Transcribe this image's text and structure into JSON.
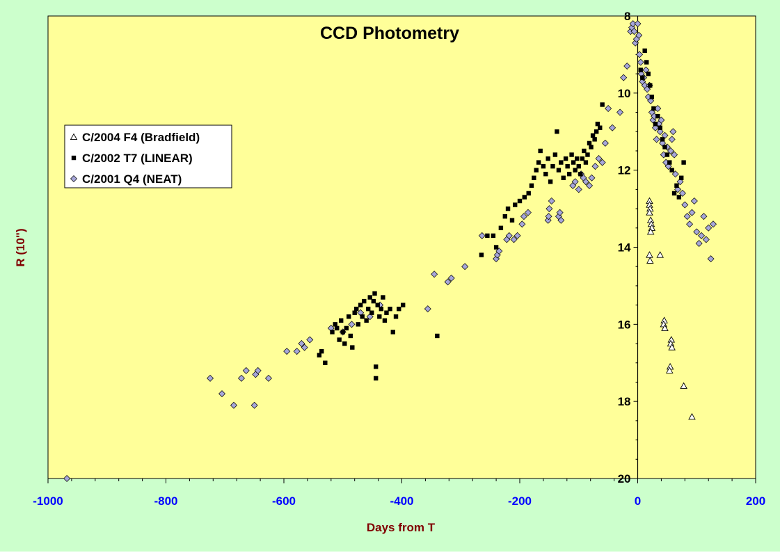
{
  "colors": {
    "background": "#ccffcc",
    "plot_area": "#ffff99",
    "tick_label_x": "#0000ff",
    "axis_title": "#800000",
    "diamond_fill": "#a6a6d9",
    "square_fill": "#000000",
    "triangle_fill": "#ffffff"
  },
  "chart_data": {
    "type": "scatter",
    "title": "CCD Photometry",
    "xlabel": "Days from T",
    "ylabel": "R (10\")",
    "xlim": [
      -1000,
      200
    ],
    "ylim": [
      8,
      20
    ],
    "y_inverted": true,
    "x_ticks": [
      "-1000",
      "-800",
      "-600",
      "-400",
      "-200",
      "0",
      "200"
    ],
    "y_ticks": [
      "8",
      "10",
      "12",
      "14",
      "16",
      "18",
      "20"
    ],
    "grid": false,
    "legend_position": "left",
    "series": [
      {
        "name": "C/2004 F4 (Bradfield)",
        "marker": "triangle",
        "points": [
          [
            20,
            12.8
          ],
          [
            20,
            12.9
          ],
          [
            21,
            13.0
          ],
          [
            20,
            13.1
          ],
          [
            22,
            13.3
          ],
          [
            23,
            13.4
          ],
          [
            24,
            13.5
          ],
          [
            22,
            13.6
          ],
          [
            20,
            14.2
          ],
          [
            21,
            14.35
          ],
          [
            38,
            14.2
          ],
          [
            45,
            15.9
          ],
          [
            44,
            16.0
          ],
          [
            46,
            16.1
          ],
          [
            57,
            16.4
          ],
          [
            56,
            16.5
          ],
          [
            58,
            16.6
          ],
          [
            55,
            17.1
          ],
          [
            54,
            17.2
          ],
          [
            78,
            17.6
          ],
          [
            92,
            18.4
          ]
        ]
      },
      {
        "name": "C/2002 T7 (LINEAR)",
        "marker": "square",
        "points": [
          [
            -540,
            16.8
          ],
          [
            -536,
            16.7
          ],
          [
            -530,
            17.0
          ],
          [
            -518,
            16.2
          ],
          [
            -513,
            16.0
          ],
          [
            -510,
            16.1
          ],
          [
            -506,
            16.4
          ],
          [
            -503,
            15.9
          ],
          [
            -500,
            16.2
          ],
          [
            -497,
            16.5
          ],
          [
            -494,
            16.1
          ],
          [
            -490,
            15.8
          ],
          [
            -487,
            16.3
          ],
          [
            -484,
            16.6
          ],
          [
            -480,
            15.7
          ],
          [
            -477,
            15.6
          ],
          [
            -474,
            16.0
          ],
          [
            -470,
            15.5
          ],
          [
            -467,
            15.8
          ],
          [
            -464,
            15.4
          ],
          [
            -460,
            15.9
          ],
          [
            -457,
            15.6
          ],
          [
            -454,
            15.3
          ],
          [
            -451,
            15.7
          ],
          [
            -448,
            15.4
          ],
          [
            -446,
            15.2
          ],
          [
            -444,
            17.1
          ],
          [
            -444,
            17.4
          ],
          [
            -441,
            15.5
          ],
          [
            -438,
            15.8
          ],
          [
            -435,
            15.6
          ],
          [
            -432,
            15.3
          ],
          [
            -429,
            15.9
          ],
          [
            -426,
            15.7
          ],
          [
            -420,
            15.6
          ],
          [
            -415,
            16.2
          ],
          [
            -410,
            15.8
          ],
          [
            -405,
            15.6
          ],
          [
            -398,
            15.5
          ],
          [
            -340,
            16.3
          ],
          [
            -265,
            14.2
          ],
          [
            -255,
            13.7
          ],
          [
            -245,
            13.7
          ],
          [
            -240,
            14.0
          ],
          [
            -232,
            13.5
          ],
          [
            -225,
            13.2
          ],
          [
            -220,
            13.0
          ],
          [
            -213,
            13.3
          ],
          [
            -208,
            12.9
          ],
          [
            -200,
            12.8
          ],
          [
            -192,
            12.7
          ],
          [
            -185,
            12.6
          ],
          [
            -180,
            12.4
          ],
          [
            -176,
            12.2
          ],
          [
            -172,
            12.0
          ],
          [
            -168,
            11.8
          ],
          [
            -165,
            11.5
          ],
          [
            -160,
            11.9
          ],
          [
            -156,
            12.1
          ],
          [
            -152,
            11.7
          ],
          [
            -148,
            12.3
          ],
          [
            -144,
            11.9
          ],
          [
            -140,
            11.6
          ],
          [
            -137,
            11.0
          ],
          [
            -134,
            12.0
          ],
          [
            -130,
            11.8
          ],
          [
            -126,
            12.2
          ],
          [
            -122,
            11.7
          ],
          [
            -119,
            11.9
          ],
          [
            -116,
            12.1
          ],
          [
            -112,
            11.6
          ],
          [
            -109,
            11.8
          ],
          [
            -106,
            12.0
          ],
          [
            -103,
            11.7
          ],
          [
            -100,
            11.9
          ],
          [
            -97,
            12.1
          ],
          [
            -94,
            11.7
          ],
          [
            -91,
            11.5
          ],
          [
            -88,
            11.8
          ],
          [
            -85,
            11.6
          ],
          [
            -82,
            11.3
          ],
          [
            -79,
            11.4
          ],
          [
            -76,
            11.1
          ],
          [
            -73,
            11.2
          ],
          [
            -70,
            11.0
          ],
          [
            -68,
            10.8
          ],
          [
            -64,
            10.9
          ],
          [
            -60,
            10.3
          ],
          [
            5,
            9.4
          ],
          [
            8,
            9.6
          ],
          [
            12,
            8.9
          ],
          [
            15,
            9.2
          ],
          [
            18,
            9.5
          ],
          [
            21,
            9.8
          ],
          [
            24,
            10.1
          ],
          [
            27,
            10.4
          ],
          [
            30,
            10.8
          ],
          [
            34,
            10.6
          ],
          [
            38,
            10.9
          ],
          [
            42,
            11.2
          ],
          [
            46,
            11.4
          ],
          [
            50,
            11.6
          ],
          [
            54,
            11.8
          ],
          [
            58,
            12.0
          ],
          [
            62,
            12.6
          ],
          [
            66,
            12.4
          ],
          [
            70,
            12.7
          ],
          [
            74,
            12.2
          ],
          [
            78,
            11.8
          ]
        ]
      },
      {
        "name": "C/2001 Q4 (NEAT)",
        "marker": "diamond",
        "points": [
          [
            -968,
            20.0
          ],
          [
            -725,
            17.4
          ],
          [
            -705,
            17.8
          ],
          [
            -685,
            18.1
          ],
          [
            -672,
            17.4
          ],
          [
            -664,
            17.2
          ],
          [
            -650,
            18.1
          ],
          [
            -648,
            17.3
          ],
          [
            -644,
            17.2
          ],
          [
            -626,
            17.4
          ],
          [
            -595,
            16.7
          ],
          [
            -578,
            16.7
          ],
          [
            -570,
            16.5
          ],
          [
            -565,
            16.6
          ],
          [
            -556,
            16.4
          ],
          [
            -520,
            16.1
          ],
          [
            -500,
            16.2
          ],
          [
            -485,
            16.0
          ],
          [
            -470,
            15.7
          ],
          [
            -454,
            15.8
          ],
          [
            -437,
            15.5
          ],
          [
            -356,
            15.6
          ],
          [
            -345,
            14.7
          ],
          [
            -322,
            14.9
          ],
          [
            -316,
            14.8
          ],
          [
            -293,
            14.5
          ],
          [
            -264,
            13.7
          ],
          [
            -240,
            14.3
          ],
          [
            -238,
            14.2
          ],
          [
            -235,
            14.1
          ],
          [
            -222,
            13.8
          ],
          [
            -218,
            13.7
          ],
          [
            -210,
            13.8
          ],
          [
            -204,
            13.7
          ],
          [
            -196,
            13.4
          ],
          [
            -193,
            13.2
          ],
          [
            -186,
            13.1
          ],
          [
            -152,
            13.3
          ],
          [
            -151,
            13.2
          ],
          [
            -150,
            13.0
          ],
          [
            -146,
            12.8
          ],
          [
            -134,
            13.2
          ],
          [
            -132,
            13.1
          ],
          [
            -130,
            13.3
          ],
          [
            -110,
            12.4
          ],
          [
            -106,
            12.3
          ],
          [
            -100,
            12.5
          ],
          [
            -96,
            12.1
          ],
          [
            -92,
            12.2
          ],
          [
            -88,
            12.3
          ],
          [
            -82,
            12.4
          ],
          [
            -78,
            12.2
          ],
          [
            -72,
            11.9
          ],
          [
            -66,
            11.7
          ],
          [
            -60,
            11.8
          ],
          [
            -55,
            11.3
          ],
          [
            -50,
            10.4
          ],
          [
            -43,
            10.9
          ],
          [
            -30,
            10.5
          ],
          [
            -24,
            9.6
          ],
          [
            -18,
            9.3
          ],
          [
            -12,
            8.4
          ],
          [
            -10,
            8.3
          ],
          [
            -8,
            8.2
          ],
          [
            -6,
            8.4
          ],
          [
            -4,
            8.7
          ],
          [
            -2,
            8.6
          ],
          [
            0,
            8.2
          ],
          [
            2,
            8.5
          ],
          [
            3,
            9.0
          ],
          [
            5,
            9.2
          ],
          [
            6,
            9.5
          ],
          [
            8,
            9.7
          ],
          [
            10,
            9.6
          ],
          [
            12,
            9.8
          ],
          [
            14,
            9.4
          ],
          [
            16,
            9.9
          ],
          [
            18,
            10.1
          ],
          [
            20,
            9.8
          ],
          [
            22,
            10.2
          ],
          [
            24,
            10.5
          ],
          [
            26,
            10.7
          ],
          [
            28,
            10.6
          ],
          [
            30,
            10.9
          ],
          [
            32,
            11.2
          ],
          [
            34,
            10.4
          ],
          [
            36,
            10.8
          ],
          [
            38,
            11.0
          ],
          [
            40,
            10.7
          ],
          [
            42,
            11.3
          ],
          [
            44,
            11.6
          ],
          [
            46,
            11.1
          ],
          [
            48,
            11.8
          ],
          [
            50,
            11.4
          ],
          [
            52,
            11.9
          ],
          [
            56,
            11.5
          ],
          [
            58,
            11.2
          ],
          [
            60,
            11.0
          ],
          [
            62,
            11.6
          ],
          [
            64,
            12.1
          ],
          [
            68,
            12.5
          ],
          [
            72,
            12.3
          ],
          [
            76,
            12.6
          ],
          [
            80,
            12.9
          ],
          [
            84,
            13.2
          ],
          [
            88,
            13.4
          ],
          [
            92,
            13.1
          ],
          [
            96,
            12.8
          ],
          [
            100,
            13.6
          ],
          [
            104,
            13.9
          ],
          [
            108,
            13.7
          ],
          [
            112,
            13.2
          ],
          [
            116,
            13.8
          ],
          [
            120,
            13.5
          ],
          [
            124,
            14.3
          ],
          [
            128,
            13.4
          ]
        ]
      }
    ]
  }
}
